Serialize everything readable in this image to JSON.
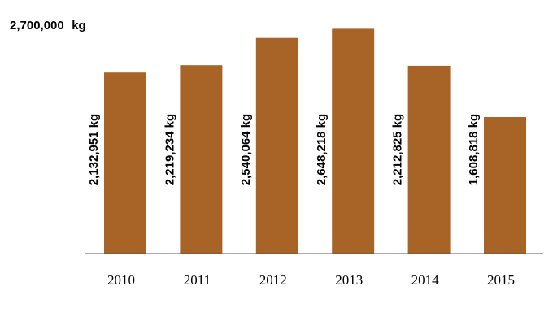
{
  "chart_data": {
    "type": "bar",
    "categories": [
      "2010",
      "2011",
      "2012",
      "2013",
      "2014",
      "2015"
    ],
    "values": [
      2132951,
      2219234,
      2540064,
      2648218,
      2212825,
      1608818
    ],
    "data_labels": [
      "2,132,951 kg",
      "2,219,234 kg",
      "2,540,064 kg",
      "2,648,218 kg",
      "2,212,825 kg",
      "1,608,818 kg"
    ],
    "y_max_label": {
      "value": "2,700,000",
      "unit": "kg"
    },
    "ylim": [
      0,
      2700000
    ],
    "unit": "kg",
    "bar_color": "#a86427",
    "grid": false,
    "legend": "none"
  }
}
